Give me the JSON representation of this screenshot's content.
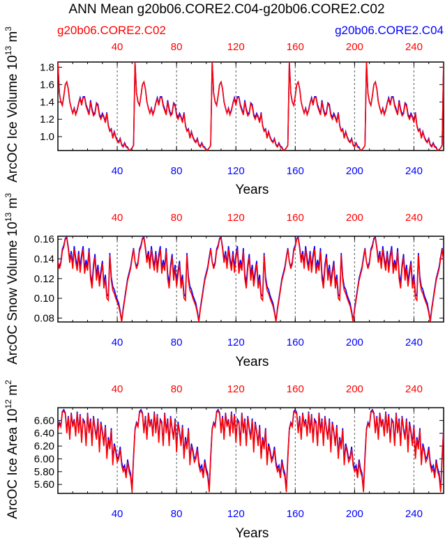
{
  "figure": {
    "title": "ANN Mean g20b06.CORE2.C04-g20b06.CORE2.C02",
    "legend": {
      "left": {
        "label": "g20b06.CORE2.C02",
        "color": "#ff0000"
      },
      "right": {
        "label": "g20b06.CORE2.C04",
        "color": "#0000ff"
      }
    }
  },
  "chart_data": [
    {
      "type": "line",
      "title": "",
      "ylabel": "ArcOC Ice Volume",
      "ylabel_unit": "10",
      "ylabel_exp": "13",
      "ylabel_tail": "m",
      "ylabel_tail_exp": "3",
      "xlabel": "Years",
      "xlim": [
        0,
        260
      ],
      "ylim": [
        0.84,
        1.86
      ],
      "yticks": [
        1.0,
        1.2,
        1.4,
        1.6,
        1.8
      ],
      "ytick_labels": [
        "1.0",
        "1.2",
        "1.4",
        "1.6",
        "1.8"
      ],
      "xticks": [
        40,
        80,
        120,
        160,
        200,
        240
      ],
      "xtick_labels": [
        "40",
        "80",
        "120",
        "160",
        "200",
        "240"
      ],
      "cycle_years": 52,
      "cycle_red": [
        1.86,
        1.5,
        1.4,
        1.36,
        1.47,
        1.6,
        1.63,
        1.55,
        1.4,
        1.33,
        1.27,
        1.32,
        1.25,
        1.3,
        1.38,
        1.44,
        1.36,
        1.45,
        1.45,
        1.35,
        1.3,
        1.25,
        1.4,
        1.3,
        1.24,
        1.26,
        1.38,
        1.35,
        1.24,
        1.2,
        1.25,
        1.22,
        1.16,
        1.27,
        1.12,
        1.06,
        1.08,
        0.98,
        1.05,
        0.99,
        0.95,
        0.93,
        0.97,
        0.9,
        0.88,
        0.92,
        0.88,
        0.87,
        0.84,
        0.85,
        0.87,
        0.9
      ],
      "cycle_blue_offset": [
        0,
        0,
        0,
        0,
        0,
        0,
        0,
        0,
        0,
        0,
        0,
        0.01,
        0.01,
        0.01,
        0.01,
        0.01,
        0.02,
        0.01,
        0.01,
        0.02,
        0.02,
        0.01,
        0.02,
        0.02,
        0.02,
        0.02,
        0.01,
        0.02,
        0.02,
        0.02,
        0.02,
        0.01,
        0.02,
        0.01,
        0.01,
        0.01,
        0.01,
        0.01,
        0.01,
        0.01,
        0.01,
        0.01,
        0.01,
        0.01,
        0.01,
        0.01,
        0.01,
        0.01,
        0,
        0,
        0,
        0
      ],
      "series": [
        {
          "name": "g20b06.CORE2.C02",
          "color": "#ff0000"
        },
        {
          "name": "g20b06.CORE2.C04",
          "color": "#0000ff"
        }
      ]
    },
    {
      "type": "line",
      "title": "",
      "ylabel": "ArcOC Snow Volume",
      "ylabel_unit": "10",
      "ylabel_exp": "13",
      "ylabel_tail": "m",
      "ylabel_tail_exp": "3",
      "xlabel": "Years",
      "xlim": [
        0,
        260
      ],
      "ylim": [
        0.076,
        0.163
      ],
      "yticks": [
        0.08,
        0.1,
        0.12,
        0.14,
        0.16
      ],
      "ytick_labels": [
        "0.08",
        "0.10",
        "0.12",
        "0.14",
        "0.16"
      ],
      "xticks": [
        40,
        80,
        120,
        160,
        200,
        240
      ],
      "xtick_labels": [
        "40",
        "80",
        "120",
        "160",
        "200",
        "240"
      ],
      "cycle_years": 52,
      "cycle_red": [
        0.137,
        0.13,
        0.135,
        0.148,
        0.152,
        0.16,
        0.161,
        0.15,
        0.136,
        0.145,
        0.13,
        0.15,
        0.137,
        0.128,
        0.145,
        0.126,
        0.14,
        0.15,
        0.125,
        0.135,
        0.128,
        0.148,
        0.12,
        0.11,
        0.13,
        0.142,
        0.118,
        0.13,
        0.112,
        0.124,
        0.135,
        0.11,
        0.12,
        0.1,
        0.098,
        0.144,
        0.118,
        0.108,
        0.105,
        0.1,
        0.096,
        0.092,
        0.085,
        0.076,
        0.088,
        0.098,
        0.108,
        0.118,
        0.124,
        0.13,
        0.14,
        0.15
      ],
      "cycle_blue_offset": [
        0,
        0.002,
        0.002,
        0.002,
        0.002,
        0.001,
        0.001,
        0.002,
        0.003,
        0.003,
        0.004,
        0.003,
        0.004,
        0.004,
        0.003,
        0.005,
        0.004,
        0.003,
        0.005,
        0.004,
        0.004,
        0.003,
        0.005,
        0.005,
        0.004,
        0.003,
        0.005,
        0.004,
        0.005,
        0.004,
        0.003,
        0.005,
        0.004,
        0.004,
        0.004,
        0.002,
        0.004,
        0.004,
        0.004,
        0.003,
        0.003,
        0.003,
        0.002,
        0.001,
        0.002,
        0.002,
        0.002,
        0.002,
        0.002,
        0.002,
        0.002,
        0.001
      ],
      "series": [
        {
          "name": "g20b06.CORE2.C02",
          "color": "#ff0000"
        },
        {
          "name": "g20b06.CORE2.C04",
          "color": "#0000ff"
        }
      ]
    },
    {
      "type": "line",
      "title": "",
      "ylabel": "ArcOC Ice Area",
      "ylabel_unit": "10",
      "ylabel_exp": "12",
      "ylabel_tail": "m",
      "ylabel_tail_exp": "2",
      "xlabel": "Years",
      "xlim": [
        0,
        260
      ],
      "ylim": [
        5.46,
        6.8
      ],
      "yticks": [
        5.6,
        5.8,
        6.0,
        6.2,
        6.4,
        6.6
      ],
      "ytick_labels": [
        "5.60",
        "5.80",
        "6.00",
        "6.20",
        "6.40",
        "6.60"
      ],
      "xticks": [
        40,
        80,
        120,
        160,
        200,
        240
      ],
      "xtick_labels": [
        "40",
        "80",
        "120",
        "160",
        "200",
        "240"
      ],
      "cycle_years": 52,
      "cycle_red": [
        6.45,
        6.55,
        6.5,
        6.72,
        6.75,
        6.7,
        6.4,
        6.65,
        6.3,
        6.7,
        6.5,
        6.6,
        6.35,
        6.72,
        6.4,
        6.68,
        6.25,
        6.6,
        6.55,
        6.2,
        6.7,
        6.4,
        6.6,
        6.2,
        6.65,
        6.45,
        6.3,
        6.6,
        6.1,
        6.55,
        6.4,
        6.2,
        6.5,
        6.0,
        6.3,
        6.15,
        6.45,
        5.9,
        6.2,
        6.1,
        5.95,
        6.0,
        6.15,
        5.9,
        5.8,
        5.85,
        5.7,
        5.95,
        5.8,
        5.72,
        5.48,
        6.0
      ],
      "cycle_blue_offset": [
        0.02,
        0.02,
        0.02,
        0.02,
        0.02,
        0.02,
        0.03,
        0.02,
        0.03,
        0.02,
        0.03,
        0.02,
        0.03,
        0.02,
        0.03,
        0.02,
        0.04,
        0.02,
        0.03,
        0.04,
        0.02,
        0.03,
        0.03,
        0.04,
        0.02,
        0.03,
        0.04,
        0.03,
        0.05,
        0.03,
        0.03,
        0.04,
        0.03,
        0.05,
        0.04,
        0.04,
        0.03,
        0.06,
        0.04,
        0.04,
        0.05,
        0.04,
        0.04,
        0.05,
        0.05,
        0.05,
        0.05,
        0.04,
        0.05,
        0.05,
        0.04,
        0.05
      ],
      "series": [
        {
          "name": "g20b06.CORE2.C02",
          "color": "#ff0000"
        },
        {
          "name": "g20b06.CORE2.C04",
          "color": "#0000ff"
        }
      ]
    }
  ]
}
